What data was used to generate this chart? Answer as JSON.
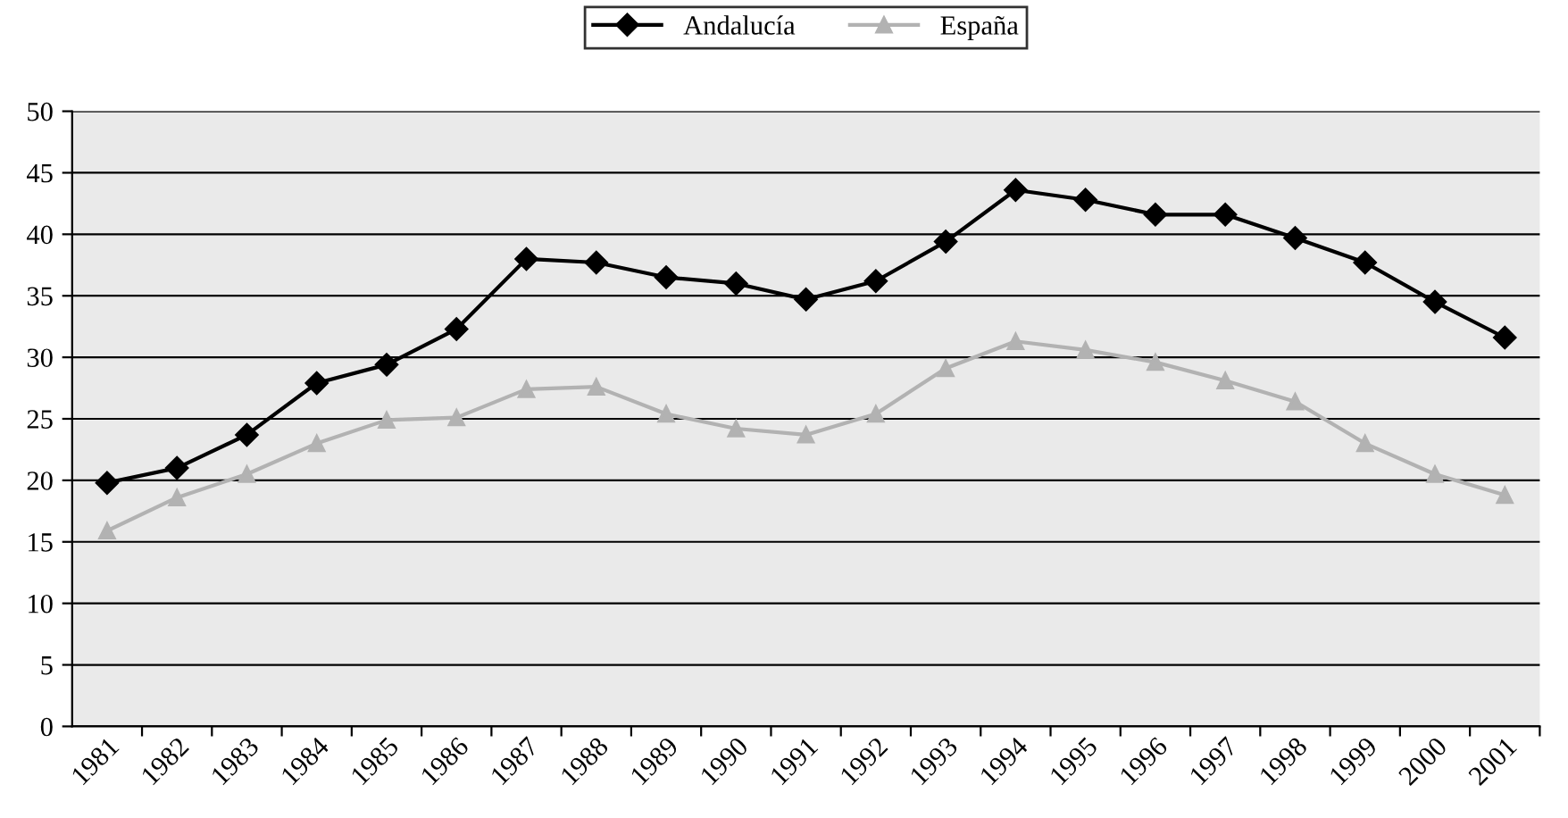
{
  "chart_data": {
    "type": "line",
    "categories": [
      "1981",
      "1982",
      "1983",
      "1984",
      "1985",
      "1986",
      "1987",
      "1988",
      "1989",
      "1990",
      "1991",
      "1992",
      "1993",
      "1994",
      "1995",
      "1996",
      "1997",
      "1998",
      "1999",
      "2000",
      "2001"
    ],
    "series": [
      {
        "name": "Andalucía",
        "color": "#000000",
        "marker": "diamond",
        "values": [
          19.8,
          21.0,
          23.7,
          27.9,
          29.4,
          32.3,
          38.0,
          37.7,
          36.5,
          36.0,
          34.7,
          36.2,
          39.4,
          43.6,
          42.8,
          41.6,
          41.6,
          39.7,
          37.7,
          34.5,
          31.6
        ]
      },
      {
        "name": "España",
        "color": "#b2b2b2",
        "marker": "triangle",
        "values": [
          15.9,
          18.6,
          20.5,
          23.0,
          24.9,
          25.1,
          27.4,
          27.6,
          25.4,
          24.2,
          23.7,
          25.4,
          29.1,
          31.3,
          30.6,
          29.6,
          28.1,
          26.4,
          23.0,
          20.5,
          18.8
        ]
      }
    ],
    "ylim": [
      0,
      50
    ],
    "yticks": [
      0,
      5,
      10,
      15,
      20,
      25,
      30,
      35,
      40,
      45,
      50
    ],
    "grid": "y",
    "legend": "top",
    "line_style": "solid"
  }
}
